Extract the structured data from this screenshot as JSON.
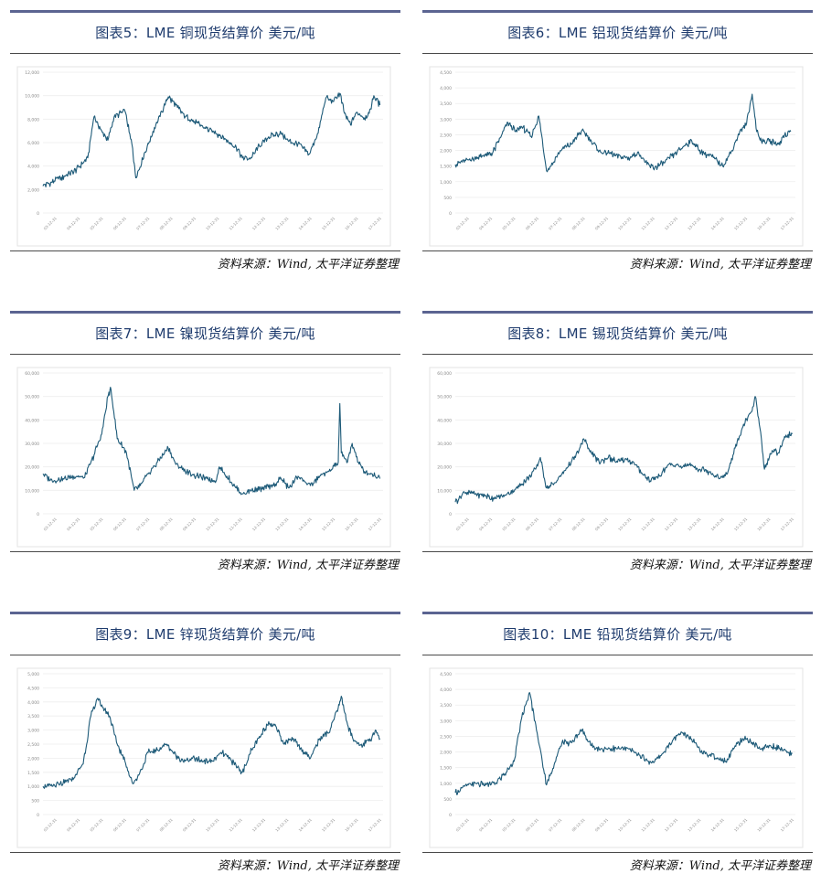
{
  "charts": [
    {
      "title": "图表5：LME 铜现货结算价 美元/吨",
      "source": "资料来源：Wind, 太平洋证券整理",
      "chart_data": {
        "type": "line",
        "ylim": [
          0,
          12000
        ],
        "yticks": [
          "12,000",
          "10,000",
          "8,000",
          "6,000",
          "4,000",
          "2,000",
          "0"
        ],
        "xticks": [
          "03-12-31",
          "04-12-31",
          "05-12-31",
          "06-12-31",
          "07-12-31",
          "08-12-31",
          "09-12-31",
          "10-12-31",
          "11-12-31",
          "12-12-31",
          "13-12-31",
          "14-12-31",
          "15-12-31",
          "16-12-31",
          "17-12-31",
          "18-12-31",
          "19-12-31",
          "20-12-31",
          "21-12-31",
          "22-12-31",
          "23-12-31",
          "24-12-31"
        ],
        "x": [
          2003.0,
          2004.0,
          2005.0,
          2005.9,
          2006.3,
          2006.8,
          2007.2,
          2007.6,
          2008.3,
          2008.8,
          2009.0,
          2009.6,
          2010.3,
          2010.9,
          2011.1,
          2011.7,
          2012.2,
          2012.8,
          2013.5,
          2014.0,
          2014.8,
          2015.5,
          2015.9,
          2016.5,
          2016.9,
          2017.6,
          2018.4,
          2018.9,
          2019.5,
          2020.2,
          2020.8,
          2021.3,
          2021.8,
          2022.2,
          2022.5,
          2022.9,
          2023.3,
          2023.8,
          2024.1,
          2024.4,
          2024.8
        ],
        "y": [
          2300,
          2900,
          3500,
          4700,
          8200,
          7000,
          6200,
          8200,
          8700,
          5500,
          3000,
          5200,
          7500,
          9200,
          9900,
          9000,
          8200,
          7800,
          7200,
          7000,
          6300,
          5600,
          4700,
          4700,
          5600,
          6500,
          6800,
          6100,
          5900,
          5000,
          6800,
          9800,
          9500,
          10200,
          8500,
          7500,
          8600,
          8100,
          8500,
          10000,
          9200
        ],
        "color": "#1d5a78"
      }
    },
    {
      "title": "图表6：LME 铝现货结算价 美元/吨",
      "source": "资料来源：Wind, 太平洋证券整理",
      "chart_data": {
        "type": "line",
        "ylim": [
          0,
          4500
        ],
        "yticks": [
          "4,500",
          "4,000",
          "3,500",
          "3,000",
          "2,500",
          "2,000",
          "1,500",
          "1,000",
          "500",
          "0"
        ],
        "xticks": [
          "03-12-31",
          "04-12-31",
          "05-12-31",
          "06-12-31",
          "07-12-31",
          "08-12-31",
          "09-12-31",
          "10-12-31",
          "11-12-31",
          "12-12-31",
          "13-12-31",
          "14-12-31",
          "15-12-31",
          "16-12-31",
          "17-12-31",
          "18-12-31",
          "19-12-31",
          "20-12-31",
          "21-12-31",
          "22-12-31",
          "23-12-31",
          "24-12-31"
        ],
        "x": [
          2003.0,
          2003.8,
          2004.6,
          2005.4,
          2005.9,
          2006.4,
          2006.9,
          2007.3,
          2007.9,
          2008.4,
          2008.9,
          2009.2,
          2009.8,
          2010.5,
          2011.2,
          2011.8,
          2012.4,
          2013.0,
          2013.7,
          2014.3,
          2014.8,
          2015.4,
          2015.9,
          2016.5,
          2017.2,
          2017.8,
          2018.3,
          2018.9,
          2019.6,
          2020.3,
          2020.9,
          2021.4,
          2021.8,
          2022.2,
          2022.5,
          2022.8,
          2023.3,
          2023.9,
          2024.3,
          2024.7
        ],
        "y": [
          1550,
          1700,
          1800,
          1900,
          2400,
          2900,
          2600,
          2750,
          2450,
          3100,
          1350,
          1500,
          2000,
          2200,
          2650,
          2300,
          1950,
          1900,
          1800,
          1750,
          1950,
          1550,
          1450,
          1600,
          1900,
          2150,
          2300,
          1950,
          1800,
          1500,
          2000,
          2600,
          2800,
          3800,
          2600,
          2300,
          2300,
          2200,
          2500,
          2600
        ],
        "color": "#1d5a78"
      }
    },
    {
      "title": "图表7：LME 镍现货结算价 美元/吨",
      "source": "资料来源：Wind, 太平洋证券整理",
      "chart_data": {
        "type": "line",
        "ylim": [
          0,
          60000
        ],
        "yticks": [
          "60,000",
          "50,000",
          "40,000",
          "30,000",
          "20,000",
          "10,000",
          "0"
        ],
        "xticks": [
          "03-12-31",
          "04-12-31",
          "05-12-31",
          "06-12-31",
          "07-12-31",
          "08-12-31",
          "09-12-31",
          "10-12-31",
          "11-12-31",
          "12-12-31",
          "13-12-31",
          "14-12-31",
          "15-12-31",
          "16-12-31",
          "17-12-31",
          "18-12-31",
          "19-12-31",
          "20-12-31",
          "21-12-31",
          "22-12-31",
          "23-12-31",
          "24-12-31"
        ],
        "x": [
          2003.0,
          2003.6,
          2004.3,
          2005.0,
          2005.7,
          2006.3,
          2006.8,
          2007.2,
          2007.4,
          2007.8,
          2008.4,
          2008.9,
          2009.3,
          2009.8,
          2010.4,
          2011.1,
          2011.6,
          2012.3,
          2012.9,
          2013.6,
          2014.2,
          2014.4,
          2014.9,
          2015.5,
          2015.9,
          2016.5,
          2017.2,
          2017.9,
          2018.4,
          2018.9,
          2019.5,
          2019.9,
          2020.3,
          2020.9,
          2021.5,
          2022.1,
          2022.2,
          2022.3,
          2022.7,
          2023.0,
          2023.4,
          2023.8,
          2024.3,
          2024.8
        ],
        "y": [
          17000,
          14000,
          15000,
          16000,
          15500,
          25000,
          34000,
          50000,
          53000,
          32000,
          26000,
          10000,
          12000,
          17000,
          22000,
          28000,
          21000,
          18000,
          16000,
          15000,
          14000,
          20000,
          16000,
          11000,
          8500,
          10000,
          10500,
          12000,
          15000,
          11000,
          16000,
          14000,
          12000,
          16000,
          18000,
          22000,
          47000,
          26000,
          22000,
          30000,
          22000,
          18000,
          17000,
          15000
        ],
        "color": "#1d5a78"
      }
    },
    {
      "title": "图表8：LME 锡现货结算价 美元/吨",
      "source": "资料来源：Wind, 太平洋证券整理",
      "chart_data": {
        "type": "line",
        "ylim": [
          0,
          60000
        ],
        "yticks": [
          "60,000",
          "50,000",
          "40,000",
          "30,000",
          "20,000",
          "10,000",
          "0"
        ],
        "xticks": [
          "03-12-31",
          "04-12-31",
          "05-12-31",
          "06-12-31",
          "07-12-31",
          "08-12-31",
          "09-12-31",
          "10-12-31",
          "11-12-31",
          "12-12-31",
          "13-12-31",
          "14-12-31",
          "15-12-31",
          "16-12-31",
          "17-12-31",
          "18-12-31",
          "19-12-31",
          "20-12-31",
          "21-12-31",
          "22-12-31",
          "23-12-31",
          "24-12-31"
        ],
        "x": [
          2003.0,
          2003.6,
          2004.3,
          2005.0,
          2005.6,
          2006.3,
          2006.9,
          2007.5,
          2008.2,
          2008.5,
          2008.9,
          2009.4,
          2009.9,
          2010.5,
          2011.0,
          2011.3,
          2011.8,
          2012.3,
          2012.9,
          2013.5,
          2014.1,
          2014.6,
          2015.1,
          2015.6,
          2016.2,
          2016.8,
          2017.5,
          2018.1,
          2018.8,
          2019.5,
          2020.1,
          2020.6,
          2021.1,
          2021.6,
          2022.2,
          2022.4,
          2022.8,
          2023.0,
          2023.5,
          2023.9,
          2024.3,
          2024.8
        ],
        "y": [
          5000,
          9000,
          8500,
          7500,
          6500,
          8000,
          10500,
          14000,
          19000,
          24000,
          11000,
          13000,
          17000,
          22000,
          27000,
          32000,
          26000,
          22000,
          24000,
          22000,
          23000,
          21000,
          17000,
          14000,
          16000,
          21000,
          20000,
          21000,
          19000,
          18000,
          15000,
          17000,
          28000,
          37000,
          44000,
          50000,
          32000,
          19000,
          27000,
          26000,
          33000,
          34000
        ],
        "color": "#1d5a78"
      }
    },
    {
      "title": "图表9：LME 锌现货结算价 美元/吨",
      "source": "资料来源：Wind, 太平洋证券整理",
      "chart_data": {
        "type": "line",
        "ylim": [
          0,
          5000
        ],
        "yticks": [
          "5,000",
          "4,500",
          "4,000",
          "3,500",
          "3,000",
          "2,500",
          "2,000",
          "1,500",
          "1,000",
          "500",
          "0"
        ],
        "xticks": [
          "03-12-31",
          "04-12-31",
          "05-12-31",
          "06-12-31",
          "07-12-31",
          "08-12-31",
          "09-12-31",
          "10-12-31",
          "11-12-31",
          "12-12-31",
          "13-12-31",
          "14-12-31",
          "15-12-31",
          "16-12-31",
          "17-12-31",
          "18-12-31",
          "19-12-31",
          "20-12-31",
          "21-12-31",
          "22-12-31",
          "23-12-31",
          "24-12-31"
        ],
        "x": [
          2003.0,
          2003.6,
          2004.3,
          2005.0,
          2005.6,
          2006.1,
          2006.5,
          2006.9,
          2007.3,
          2007.8,
          2008.3,
          2008.8,
          2009.2,
          2009.8,
          2010.4,
          2011.0,
          2011.6,
          2012.2,
          2012.8,
          2013.4,
          2014.0,
          2014.6,
          2015.2,
          2015.9,
          2016.5,
          2017.1,
          2017.6,
          2018.1,
          2018.6,
          2019.2,
          2019.8,
          2020.3,
          2020.9,
          2021.5,
          2022.1,
          2022.3,
          2022.7,
          2023.1,
          2023.6,
          2024.1,
          2024.5,
          2024.8
        ],
        "y": [
          1000,
          1000,
          1100,
          1300,
          1800,
          3500,
          4100,
          3800,
          3500,
          2500,
          1900,
          1100,
          1400,
          2200,
          2300,
          2500,
          2100,
          1900,
          2000,
          1900,
          1900,
          2200,
          1900,
          1500,
          2300,
          2800,
          3300,
          3100,
          2500,
          2700,
          2300,
          2000,
          2700,
          2900,
          3800,
          4200,
          3200,
          2600,
          2500,
          2600,
          3000,
          2700
        ],
        "color": "#1d5a78"
      }
    },
    {
      "title": "图表10：LME 铅现货结算价 美元/吨",
      "source": "资料来源：Wind, 太平洋证券整理",
      "chart_data": {
        "type": "line",
        "ylim": [
          0,
          4500
        ],
        "yticks": [
          "4,500",
          "4,000",
          "3,500",
          "3,000",
          "2,500",
          "2,000",
          "1,500",
          "1,000",
          "500",
          "0"
        ],
        "xticks": [
          "03-12-31",
          "04-12-31",
          "05-12-31",
          "06-12-31",
          "07-12-31",
          "08-12-31",
          "09-12-31",
          "10-12-31",
          "11-12-31",
          "12-12-31",
          "13-12-31",
          "14-12-31",
          "15-12-31",
          "16-12-31",
          "17-12-31",
          "18-12-31",
          "19-12-31",
          "20-12-31",
          "21-12-31",
          "22-12-31",
          "23-12-31",
          "24-12-31"
        ],
        "x": [
          2003.0,
          2003.6,
          2004.3,
          2005.0,
          2005.6,
          2006.2,
          2006.8,
          2007.3,
          2007.8,
          2008.3,
          2008.9,
          2009.4,
          2009.9,
          2010.5,
          2011.2,
          2011.8,
          2012.4,
          2013.0,
          2013.6,
          2014.2,
          2014.9,
          2015.5,
          2015.9,
          2016.5,
          2017.1,
          2017.7,
          2018.2,
          2018.8,
          2019.4,
          2020.0,
          2020.5,
          2021.1,
          2021.7,
          2022.2,
          2022.8,
          2023.4,
          2024.0,
          2024.5,
          2024.8
        ],
        "y": [
          700,
          900,
          1000,
          950,
          1000,
          1300,
          1700,
          3100,
          3900,
          2600,
          950,
          1600,
          2300,
          2300,
          2700,
          2200,
          2100,
          2100,
          2100,
          2100,
          1900,
          1700,
          1700,
          2000,
          2400,
          2600,
          2500,
          2100,
          1900,
          1800,
          1700,
          2200,
          2400,
          2300,
          2100,
          2200,
          2100,
          2000,
          1950
        ],
        "color": "#1d5a78"
      }
    }
  ]
}
